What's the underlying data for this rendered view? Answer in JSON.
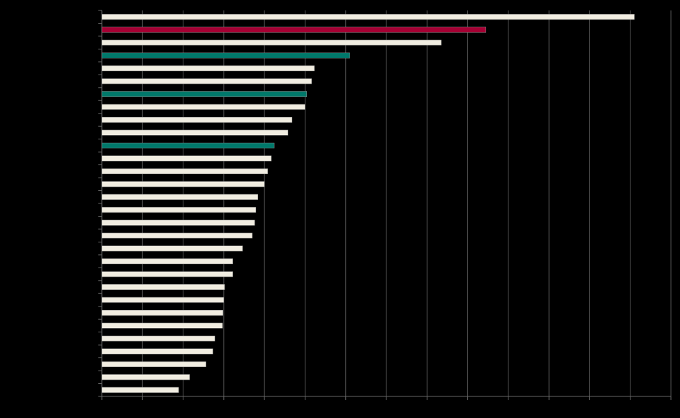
{
  "chart_data": {
    "type": "barh",
    "categories": [
      null,
      null,
      null,
      null,
      null,
      null,
      null,
      null,
      null,
      null,
      null,
      null,
      null,
      null,
      null,
      null,
      null,
      null,
      null,
      null,
      null,
      null,
      null,
      null,
      null,
      null,
      null,
      null,
      null,
      null
    ],
    "values": [
      13.1,
      9.45,
      8.35,
      6.1,
      5.23,
      5.16,
      5.04,
      5.0,
      4.68,
      4.58,
      4.24,
      4.17,
      4.08,
      4.0,
      3.84,
      3.79,
      3.76,
      3.7,
      3.46,
      3.22,
      3.22,
      3.02,
      3.0,
      2.98,
      2.97,
      2.78,
      2.73,
      2.56,
      2.16,
      1.89
    ],
    "colors": [
      "#f1ede1",
      "#a50034",
      "#f1ede1",
      "#00796b",
      "#f1ede1",
      "#f1ede1",
      "#00796b",
      "#f1ede1",
      "#f1ede1",
      "#f1ede1",
      "#00796b",
      "#f1ede1",
      "#f1ede1",
      "#f1ede1",
      "#f1ede1",
      "#f1ede1",
      "#f1ede1",
      "#f1ede1",
      "#f1ede1",
      "#f1ede1",
      "#f1ede1",
      "#f1ede1",
      "#f1ede1",
      "#f1ede1",
      "#f1ede1",
      "#f1ede1",
      "#f1ede1",
      "#f1ede1",
      "#f1ede1",
      "#f1ede1"
    ],
    "xlim": [
      0,
      14
    ],
    "xticks": [
      0,
      1,
      2,
      3,
      4,
      5,
      6,
      7,
      8,
      9,
      10,
      11,
      12,
      13,
      14
    ],
    "grid": true
  }
}
